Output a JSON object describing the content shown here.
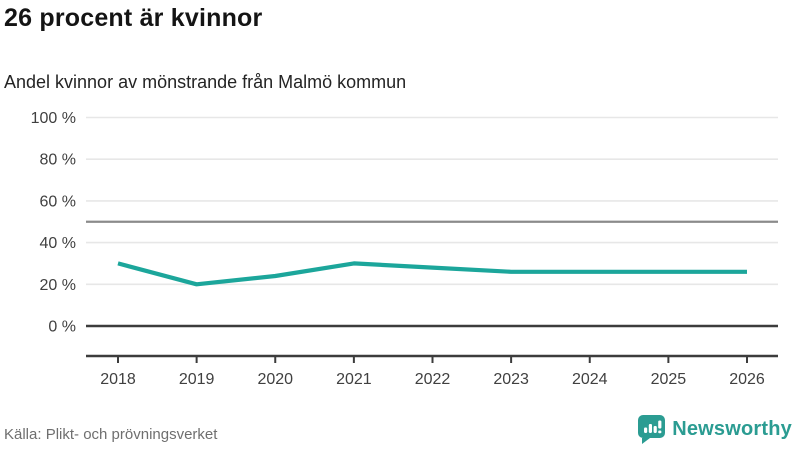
{
  "header": {
    "title": "26 procent är kvinnor",
    "subtitle": "Andel kvinnor av mönstrande från Malmö kommun"
  },
  "footer": {
    "source": "Källa: Plikt- och prövningsverket",
    "logo_text": "Newsworthy",
    "logo_icon": "bar-chart-speech-bubble-icon"
  },
  "colors": {
    "line": "#1ca69b",
    "logo": "#2b9c92",
    "grid_light": "#e7e7e7",
    "grid_mid": "#8b8b8b",
    "axis_dark": "#3c3c3c",
    "tick_text": "#404040"
  },
  "chart_data": {
    "type": "line",
    "title": "26 procent är kvinnor",
    "subtitle": "Andel kvinnor av mönstrande från Malmö kommun",
    "x": [
      2018,
      2019,
      2020,
      2021,
      2022,
      2023,
      2024,
      2025,
      2026
    ],
    "series": [
      {
        "name": "Andel kvinnor av mönstrande, Malmö kommun",
        "values": [
          30,
          20,
          24,
          30,
          28,
          26,
          26,
          26,
          26
        ]
      }
    ],
    "unit": "%",
    "xlabel": "",
    "ylabel": "",
    "ylim": [
      0,
      100
    ],
    "yticks": [
      0,
      20,
      40,
      60,
      80,
      100
    ],
    "ytick_suffix": " %",
    "reference_line_y": 50,
    "grid": true,
    "legend": false,
    "source": "Källa: Plikt- och prövningsverket"
  }
}
